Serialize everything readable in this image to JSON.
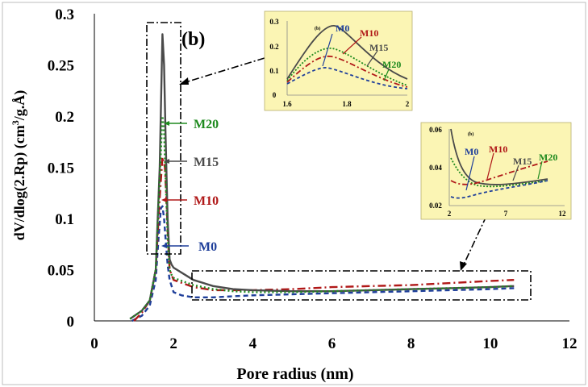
{
  "chart_data": {
    "type": "line",
    "panel_label": "(b)",
    "xlabel": "Pore radius (nm)",
    "ylabel_main": "dV/dlog(2.Rp) (cm",
    "ylabel_sup": "3",
    "ylabel_end": "/g.Å)",
    "xlim": [
      0,
      12
    ],
    "ylim": [
      0,
      0.3
    ],
    "x_ticks": [
      "0",
      "2",
      "4",
      "6",
      "8",
      "10",
      "12"
    ],
    "y_ticks": [
      "0",
      "0.05",
      "0.1",
      "0.15",
      "0.2",
      "0.25",
      "0.3"
    ],
    "series": [
      {
        "name": "M0",
        "color": "#1f3f9a",
        "dash": "dashed",
        "x": [
          0.95,
          1.2,
          1.4,
          1.55,
          1.62,
          1.68,
          1.72,
          1.76,
          1.8,
          1.85,
          1.9,
          2.0,
          2.2,
          2.5,
          3.0,
          3.5,
          4.0,
          5.0,
          6.0,
          7.0,
          8.0,
          9.0,
          10.0,
          10.6
        ],
        "y": [
          0.0,
          0.005,
          0.015,
          0.04,
          0.08,
          0.11,
          0.112,
          0.1,
          0.08,
          0.055,
          0.04,
          0.028,
          0.025,
          0.023,
          0.023,
          0.024,
          0.025,
          0.026,
          0.027,
          0.028,
          0.029,
          0.03,
          0.031,
          0.032
        ]
      },
      {
        "name": "M10",
        "color": "#b01818",
        "dash": "dashdot",
        "x": [
          1.0,
          1.2,
          1.4,
          1.55,
          1.65,
          1.72,
          1.78,
          1.82,
          1.86,
          1.9,
          2.0,
          2.5,
          3.0,
          4.0,
          5.0,
          6.0,
          7.0,
          8.0,
          9.0,
          10.0,
          10.6
        ],
        "y": [
          0.0,
          0.008,
          0.02,
          0.05,
          0.12,
          0.16,
          0.15,
          0.12,
          0.08,
          0.05,
          0.04,
          0.033,
          0.03,
          0.03,
          0.031,
          0.033,
          0.034,
          0.035,
          0.037,
          0.039,
          0.04
        ]
      },
      {
        "name": "M15",
        "color": "#4a4a4a",
        "dash": "solid",
        "x": [
          0.9,
          1.2,
          1.4,
          1.55,
          1.65,
          1.72,
          1.76,
          1.8,
          1.85,
          1.9,
          1.95,
          2.0,
          2.5,
          3.0,
          3.5,
          4.0,
          5.0,
          6.0,
          7.0,
          8.0,
          9.0,
          10.0,
          10.6
        ],
        "y": [
          0.002,
          0.01,
          0.02,
          0.05,
          0.15,
          0.28,
          0.25,
          0.18,
          0.1,
          0.06,
          0.055,
          0.052,
          0.04,
          0.034,
          0.031,
          0.03,
          0.029,
          0.029,
          0.03,
          0.031,
          0.032,
          0.033,
          0.034
        ]
      },
      {
        "name": "M20",
        "color": "#1e8a1e",
        "dash": "dotted",
        "x": [
          0.9,
          1.2,
          1.4,
          1.55,
          1.65,
          1.72,
          1.76,
          1.8,
          1.85,
          1.9,
          1.95,
          2.0,
          2.5,
          3.0,
          3.5,
          4.0,
          5.0,
          6.0,
          7.0,
          8.0,
          9.0,
          10.0,
          10.6
        ],
        "y": [
          0.002,
          0.01,
          0.02,
          0.05,
          0.14,
          0.2,
          0.185,
          0.14,
          0.08,
          0.05,
          0.045,
          0.042,
          0.035,
          0.031,
          0.029,
          0.028,
          0.028,
          0.029,
          0.03,
          0.031,
          0.032,
          0.033,
          0.034
        ]
      }
    ],
    "series_labels": [
      "M20",
      "M15",
      "M10",
      "M0"
    ],
    "inset_peak": {
      "panel_label": "(b)",
      "xlim": [
        1.6,
        2.0
      ],
      "ylim": [
        0,
        0.3
      ],
      "x_ticks": [
        "1.6",
        "1.8",
        "2"
      ],
      "y_ticks": [
        "0",
        "0.1",
        "0.2",
        "0.3"
      ],
      "labels": [
        "M0",
        "M10",
        "M15",
        "M20"
      ]
    },
    "inset_tail": {
      "panel_label": "(b)",
      "xlim": [
        2,
        12
      ],
      "ylim": [
        0.02,
        0.06
      ],
      "x_ticks": [
        "2",
        "7",
        "12"
      ],
      "y_ticks": [
        "0.02",
        "0.04",
        "0.06"
      ],
      "labels": [
        "M0",
        "M10",
        "M15",
        "M20"
      ]
    },
    "legend_position": "annotations inside plot"
  }
}
